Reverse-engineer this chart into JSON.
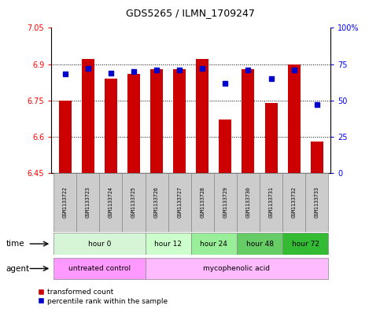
{
  "title": "GDS5265 / ILMN_1709247",
  "samples": [
    "GSM1133722",
    "GSM1133723",
    "GSM1133724",
    "GSM1133725",
    "GSM1133726",
    "GSM1133727",
    "GSM1133728",
    "GSM1133729",
    "GSM1133730",
    "GSM1133731",
    "GSM1133732",
    "GSM1133733"
  ],
  "bar_values": [
    6.75,
    6.92,
    6.84,
    6.86,
    6.88,
    6.88,
    6.92,
    6.67,
    6.88,
    6.74,
    6.9,
    6.58
  ],
  "percentile_values": [
    68,
    72,
    69,
    70,
    71,
    71,
    72,
    62,
    71,
    65,
    71,
    47
  ],
  "bar_bottom": 6.45,
  "ylim_left": [
    6.45,
    7.05
  ],
  "ylim_right": [
    0,
    100
  ],
  "yticks_left": [
    6.45,
    6.6,
    6.75,
    6.9,
    7.05
  ],
  "ytick_labels_left": [
    "6.45",
    "6.6",
    "6.75",
    "6.9",
    "7.05"
  ],
  "yticks_right": [
    0,
    25,
    50,
    75,
    100
  ],
  "ytick_labels_right": [
    "0",
    "25",
    "50",
    "75",
    "100%"
  ],
  "bar_color": "#cc0000",
  "dot_color": "#0000cc",
  "time_groups": [
    {
      "label": "hour 0",
      "start": 0,
      "end": 3,
      "color": "#d6f5d6"
    },
    {
      "label": "hour 12",
      "start": 4,
      "end": 5,
      "color": "#ccffcc"
    },
    {
      "label": "hour 24",
      "start": 6,
      "end": 7,
      "color": "#99ee99"
    },
    {
      "label": "hour 48",
      "start": 8,
      "end": 9,
      "color": "#66cc66"
    },
    {
      "label": "hour 72",
      "start": 10,
      "end": 11,
      "color": "#33bb33"
    }
  ],
  "agent_groups": [
    {
      "label": "untreated control",
      "start": 0,
      "end": 3,
      "color": "#ff99ff"
    },
    {
      "label": "mycophenolic acid",
      "start": 4,
      "end": 11,
      "color": "#ffbbff"
    }
  ],
  "legend_bar_label": "transformed count",
  "legend_dot_label": "percentile rank within the sample",
  "time_label": "time",
  "agent_label": "agent",
  "sample_bg_color": "#cccccc",
  "border_color": "#888888"
}
